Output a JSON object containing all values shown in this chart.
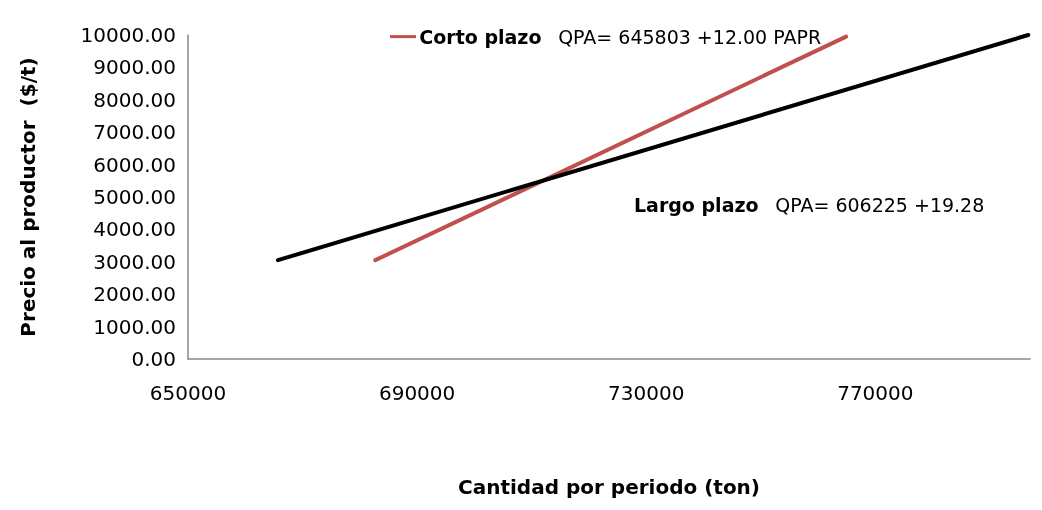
{
  "chart_data": {
    "type": "line",
    "xlabel": "Cantidad por periodo (ton)",
    "ylabel": "Precio al productor  ($/t)",
    "xlim": [
      650000,
      797000
    ],
    "xticks": [
      650000,
      690000,
      730000,
      770000
    ],
    "ylim": [
      0,
      10000
    ],
    "yticks": [
      {
        "value": 0,
        "label": "0.00"
      },
      {
        "value": 1000,
        "label": "1000.00"
      },
      {
        "value": 2000,
        "label": "2000.00"
      },
      {
        "value": 3000,
        "label": "3000.00"
      },
      {
        "value": 4000,
        "label": "4000.00"
      },
      {
        "value": 5000,
        "label": "5000.00"
      },
      {
        "value": 6000,
        "label": "6000.00"
      },
      {
        "value": 7000,
        "label": "7000.00"
      },
      {
        "value": 8000,
        "label": "8000.00"
      },
      {
        "value": 9000,
        "label": "9000.00"
      },
      {
        "value": 10000,
        "label": "10000.00"
      }
    ],
    "series": [
      {
        "name": "Corto plazo",
        "color": "#c0504d",
        "x": [
          682700,
          764900
        ],
        "values": [
          3050,
          9950
        ]
      },
      {
        "name": "Largo plazo",
        "color": "#000000",
        "x": [
          665700,
          796700
        ],
        "values": [
          3050,
          10000
        ]
      }
    ],
    "annotations": [
      "QPA= 645803 +12.00 PAPR",
      "QPA= 606225 +19.28"
    ],
    "grid": false,
    "legend": "top",
    "marker": "none",
    "line_style": "solid"
  }
}
